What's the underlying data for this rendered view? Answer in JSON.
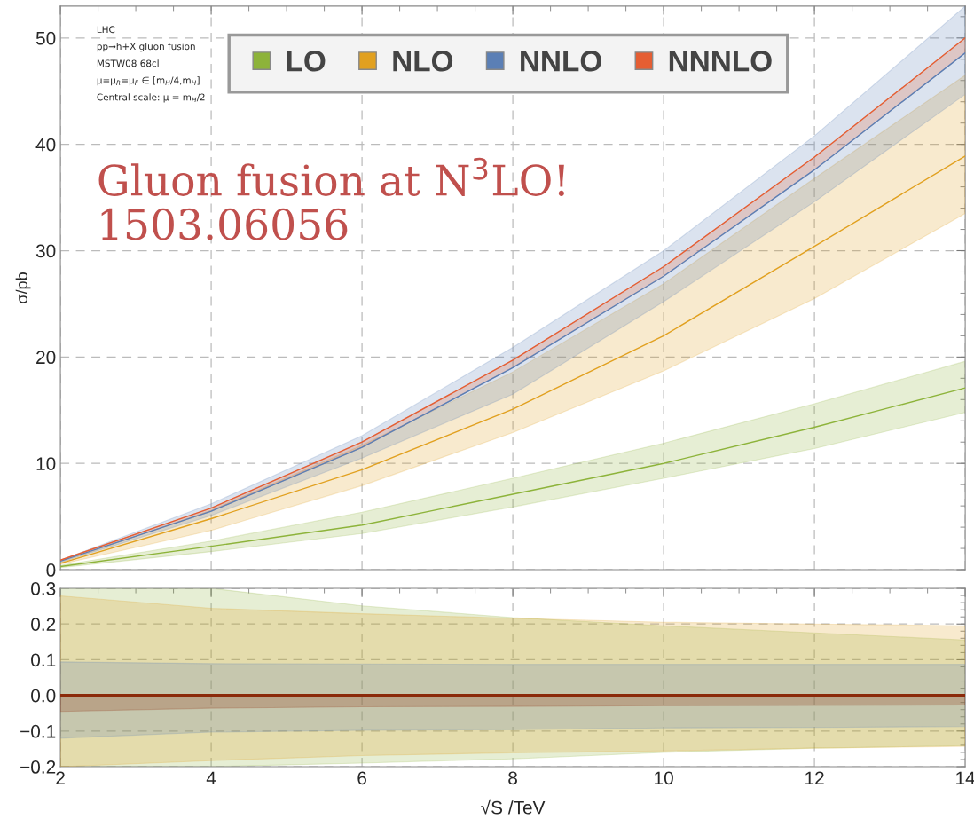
{
  "chart_data": [
    {
      "type": "line",
      "x": [
        2,
        4,
        6,
        8,
        10,
        12,
        14
      ],
      "ylabel": "σ/pb",
      "xlim": [
        2,
        14
      ],
      "xticks": [
        2,
        4,
        6,
        8,
        10,
        12,
        14
      ],
      "ylim": [
        0,
        53
      ],
      "yticks": [
        0,
        10,
        20,
        30,
        40,
        50
      ],
      "tick_labels": "y",
      "grid": true,
      "legend": "top",
      "line_style": "solid",
      "marker": "none",
      "annotations": [
        "LHC",
        "pp→h+X gluon fusion",
        "MSTW08 68cl",
        "μ=μ$_{R}$=μ$_{F}$ ∈ [m$_{H}$/4,m$_{H}$]",
        "Central scale: μ = m$_{H}$/2",
        "Gluon fusion at N$^{3}$LO!\n1503.06056"
      ],
      "series": [
        {
          "name": "LO",
          "color": "#8db33a",
          "values": [
            0.3,
            2.2,
            4.2,
            7.1,
            10.0,
            13.4,
            17.1
          ],
          "lower": [
            0.2,
            1.7,
            3.4,
            5.9,
            8.6,
            11.4,
            14.8
          ],
          "upper": [
            0.4,
            2.7,
            5.4,
            8.6,
            11.9,
            15.6,
            19.6
          ]
        },
        {
          "name": "NLO",
          "color": "#e1a01f",
          "values": [
            0.6,
            4.8,
            9.4,
            15.1,
            22.0,
            30.4,
            38.9
          ],
          "lower": [
            0.5,
            3.7,
            7.9,
            12.9,
            18.7,
            25.5,
            33.5
          ],
          "upper": [
            0.7,
            5.6,
            11.7,
            18.6,
            26.9,
            36.8,
            46.5
          ]
        },
        {
          "name": "NNLO",
          "color": "#5b7fb5",
          "values": [
            0.8,
            5.5,
            11.5,
            19.0,
            27.6,
            37.6,
            48.6
          ],
          "lower": [
            0.7,
            5.1,
            10.5,
            16.5,
            25.2,
            34.6,
            44.7
          ],
          "upper": [
            0.9,
            6.2,
            12.6,
            20.9,
            30.0,
            40.8,
            53.0
          ]
        },
        {
          "name": "NNNLO",
          "color": "#e55e33",
          "values": [
            0.9,
            5.8,
            12.0,
            19.7,
            28.5,
            38.8,
            50.0
          ],
          "lower": [
            0.8,
            5.5,
            11.5,
            19.0,
            27.6,
            37.6,
            48.6
          ],
          "upper": [
            0.9,
            5.8,
            12.0,
            19.7,
            28.5,
            38.8,
            50.0
          ]
        }
      ]
    },
    {
      "type": "line",
      "x": [
        2,
        4,
        6,
        8,
        10,
        12,
        14
      ],
      "xlabel": "√S /TeV",
      "xlim": [
        2,
        14
      ],
      "xticks": [
        2,
        4,
        6,
        8,
        10,
        12,
        14
      ],
      "ylim": [
        -0.2,
        0.3
      ],
      "yticks": [
        0.3,
        0.2,
        0.1,
        {
          "value": 0.0,
          "label": "0.0"
        },
        {
          "value": -0.1,
          "label": "−0.1"
        },
        {
          "value": -0.2,
          "label": "−0.2"
        }
      ],
      "grid": true,
      "line_style": "solid",
      "marker": "none",
      "series": [
        {
          "color": "#8db33a",
          "values": [
            null,
            null,
            null,
            null,
            null,
            null,
            null
          ],
          "lower": [
            -0.2,
            -0.2,
            -0.19,
            -0.178,
            -0.16,
            -0.148,
            -0.141
          ],
          "upper": [
            0.3,
            0.3,
            0.251,
            0.218,
            0.195,
            0.175,
            0.155
          ]
        },
        {
          "color": "#e1a01f",
          "values": [
            null,
            null,
            null,
            null,
            null,
            null,
            null
          ],
          "lower": [
            -0.2,
            -0.183,
            -0.169,
            -0.161,
            -0.156,
            -0.148,
            -0.143
          ],
          "upper": [
            0.279,
            0.244,
            0.229,
            0.216,
            0.205,
            0.2,
            0.195
          ]
        },
        {
          "color": "#5b7fb5",
          "values": [
            null,
            null,
            null,
            null,
            null,
            null,
            null
          ],
          "lower": [
            -0.12,
            -0.103,
            -0.098,
            -0.096,
            -0.091,
            -0.09,
            -0.087
          ],
          "upper": [
            0.094,
            0.089,
            0.088,
            0.087,
            0.087,
            0.087,
            0.087
          ]
        },
        {
          "color": "#8b2a0a",
          "values": [
            0,
            0,
            0,
            0,
            0,
            0,
            0
          ],
          "lower": [
            -0.045,
            -0.036,
            -0.032,
            -0.031,
            -0.029,
            -0.028,
            -0.027
          ],
          "upper": [
            0,
            0,
            0,
            0,
            0,
            0,
            0
          ]
        }
      ]
    }
  ]
}
